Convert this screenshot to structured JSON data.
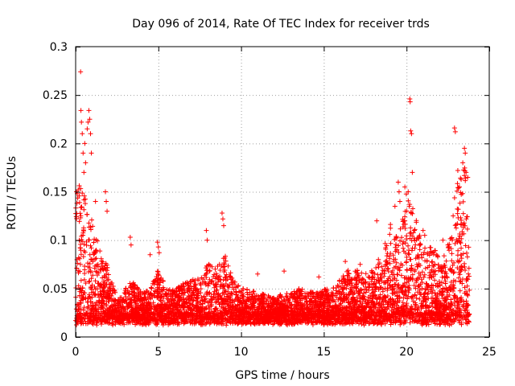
{
  "chart_data": {
    "type": "scatter",
    "title": "Day 096 of 2014, Rate Of TEC Index for receiver trds",
    "xlabel": "GPS time / hours",
    "ylabel": "ROTI / TECUs",
    "xlim": [
      0,
      25
    ],
    "ylim": [
      0,
      0.3
    ],
    "xticks": [
      0,
      5,
      10,
      15,
      20,
      25
    ],
    "xtick_labels": [
      "0",
      "5",
      "10",
      "15",
      "20",
      "25"
    ],
    "yticks": [
      0,
      0.05,
      0.1,
      0.15,
      0.2,
      0.25,
      0.3
    ],
    "ytick_labels": [
      "0",
      "0.05",
      "0.1",
      "0.15",
      "0.2",
      "0.25",
      "0.3"
    ],
    "grid": true,
    "marker": "+",
    "color": "#ff0000",
    "envelope": {
      "hours": [
        0,
        0.25,
        0.5,
        0.75,
        1,
        1.5,
        2,
        2.5,
        3,
        3.5,
        4,
        4.5,
        5,
        5.5,
        6,
        6.5,
        7,
        7.5,
        8,
        8.5,
        9,
        9.5,
        10,
        10.5,
        11,
        11.5,
        12,
        12.5,
        13,
        13.5,
        14,
        14.5,
        15,
        15.5,
        16,
        16.5,
        17,
        17.5,
        18,
        18.5,
        19,
        19.5,
        20,
        20.5,
        21,
        21.5,
        22,
        22.5,
        23,
        23.5,
        23.8
      ],
      "typical_max": [
        0.14,
        0.16,
        0.15,
        0.14,
        0.12,
        0.09,
        0.07,
        0.04,
        0.05,
        0.06,
        0.045,
        0.05,
        0.07,
        0.05,
        0.05,
        0.055,
        0.06,
        0.06,
        0.08,
        0.07,
        0.09,
        0.06,
        0.05,
        0.05,
        0.045,
        0.045,
        0.04,
        0.045,
        0.045,
        0.05,
        0.05,
        0.045,
        0.05,
        0.05,
        0.06,
        0.07,
        0.07,
        0.065,
        0.07,
        0.08,
        0.12,
        0.1,
        0.15,
        0.13,
        0.09,
        0.1,
        0.08,
        0.09,
        0.16,
        0.18,
        0.16
      ]
    },
    "spikes": [
      {
        "x": 0.05,
        "y": 0.15
      },
      {
        "x": 0.1,
        "y": 0.148
      },
      {
        "x": 0.15,
        "y": 0.152
      },
      {
        "x": 0.3,
        "y": 0.274
      },
      {
        "x": 0.32,
        "y": 0.234
      },
      {
        "x": 0.35,
        "y": 0.222
      },
      {
        "x": 0.4,
        "y": 0.21
      },
      {
        "x": 0.45,
        "y": 0.19
      },
      {
        "x": 0.5,
        "y": 0.17
      },
      {
        "x": 0.55,
        "y": 0.2
      },
      {
        "x": 0.6,
        "y": 0.18
      },
      {
        "x": 0.7,
        "y": 0.215
      },
      {
        "x": 0.75,
        "y": 0.222
      },
      {
        "x": 0.8,
        "y": 0.234
      },
      {
        "x": 0.85,
        "y": 0.225
      },
      {
        "x": 0.9,
        "y": 0.21
      },
      {
        "x": 0.95,
        "y": 0.19
      },
      {
        "x": 1.2,
        "y": 0.14
      },
      {
        "x": 1.8,
        "y": 0.15
      },
      {
        "x": 1.85,
        "y": 0.14
      },
      {
        "x": 1.9,
        "y": 0.13
      },
      {
        "x": 3.3,
        "y": 0.103
      },
      {
        "x": 3.35,
        "y": 0.095
      },
      {
        "x": 4.5,
        "y": 0.085
      },
      {
        "x": 4.95,
        "y": 0.098
      },
      {
        "x": 5.0,
        "y": 0.093
      },
      {
        "x": 5.05,
        "y": 0.087
      },
      {
        "x": 7.9,
        "y": 0.11
      },
      {
        "x": 7.95,
        "y": 0.1
      },
      {
        "x": 8.85,
        "y": 0.128
      },
      {
        "x": 8.9,
        "y": 0.122
      },
      {
        "x": 8.95,
        "y": 0.115
      },
      {
        "x": 11.0,
        "y": 0.065
      },
      {
        "x": 12.6,
        "y": 0.068
      },
      {
        "x": 14.7,
        "y": 0.062
      },
      {
        "x": 16.3,
        "y": 0.078
      },
      {
        "x": 17.2,
        "y": 0.075
      },
      {
        "x": 18.2,
        "y": 0.12
      },
      {
        "x": 18.3,
        "y": 0.08
      },
      {
        "x": 19.3,
        "y": 0.135
      },
      {
        "x": 19.5,
        "y": 0.16
      },
      {
        "x": 19.55,
        "y": 0.15
      },
      {
        "x": 19.6,
        "y": 0.14
      },
      {
        "x": 19.9,
        "y": 0.155
      },
      {
        "x": 20.1,
        "y": 0.15
      },
      {
        "x": 20.2,
        "y": 0.246
      },
      {
        "x": 20.22,
        "y": 0.243
      },
      {
        "x": 20.25,
        "y": 0.213
      },
      {
        "x": 20.3,
        "y": 0.21
      },
      {
        "x": 20.35,
        "y": 0.17
      },
      {
        "x": 21.0,
        "y": 0.11
      },
      {
        "x": 21.1,
        "y": 0.105
      },
      {
        "x": 22.2,
        "y": 0.1
      },
      {
        "x": 22.5,
        "y": 0.095
      },
      {
        "x": 22.9,
        "y": 0.216
      },
      {
        "x": 22.95,
        "y": 0.212
      },
      {
        "x": 23.1,
        "y": 0.172
      },
      {
        "x": 23.2,
        "y": 0.155
      },
      {
        "x": 23.4,
        "y": 0.18
      },
      {
        "x": 23.5,
        "y": 0.195
      },
      {
        "x": 23.55,
        "y": 0.19
      },
      {
        "x": 23.6,
        "y": 0.17
      },
      {
        "x": 23.7,
        "y": 0.165
      }
    ]
  }
}
